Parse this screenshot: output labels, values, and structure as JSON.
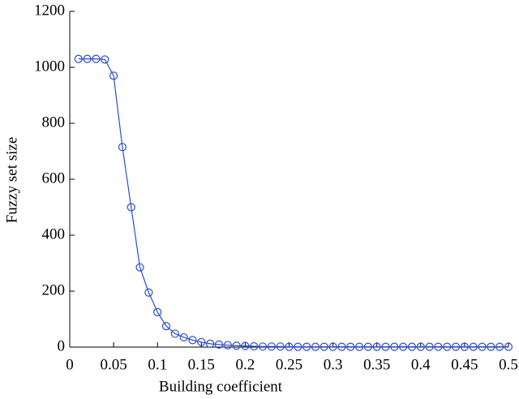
{
  "chart_data": {
    "type": "line",
    "xlabel": "Building coefficient",
    "ylabel": "Fuzzy set size",
    "x": [
      0.01,
      0.02,
      0.03,
      0.04,
      0.05,
      0.06,
      0.07,
      0.08,
      0.09,
      0.1,
      0.11,
      0.12,
      0.13,
      0.14,
      0.15,
      0.16,
      0.17,
      0.18,
      0.19,
      0.2,
      0.21,
      0.22,
      0.23,
      0.24,
      0.25,
      0.26,
      0.27,
      0.28,
      0.29,
      0.3,
      0.31,
      0.32,
      0.33,
      0.34,
      0.35,
      0.36,
      0.37,
      0.38,
      0.39,
      0.4,
      0.41,
      0.42,
      0.43,
      0.44,
      0.45,
      0.46,
      0.47,
      0.48,
      0.49,
      0.5
    ],
    "series": [
      {
        "color": "#2b4fc4",
        "values": [
          1030,
          1030,
          1030,
          1028,
          970,
          715,
          500,
          285,
          195,
          125,
          75,
          48,
          35,
          25,
          18,
          12,
          9,
          7,
          5,
          4,
          3,
          2,
          2,
          2,
          1,
          1,
          1,
          1,
          1,
          1,
          1,
          1,
          1,
          1,
          1,
          1,
          1,
          1,
          1,
          1,
          1,
          1,
          1,
          1,
          1,
          1,
          1,
          1,
          1,
          1
        ]
      }
    ],
    "xlim": [
      0,
      0.5
    ],
    "xticks": [
      0,
      0.05,
      0.1,
      0.15,
      0.2,
      0.25,
      0.3,
      0.35,
      0.4,
      0.45,
      0.5
    ],
    "ylim": [
      0,
      1200
    ],
    "yticks": [
      0,
      200,
      400,
      600,
      800,
      1000,
      1200
    ]
  }
}
